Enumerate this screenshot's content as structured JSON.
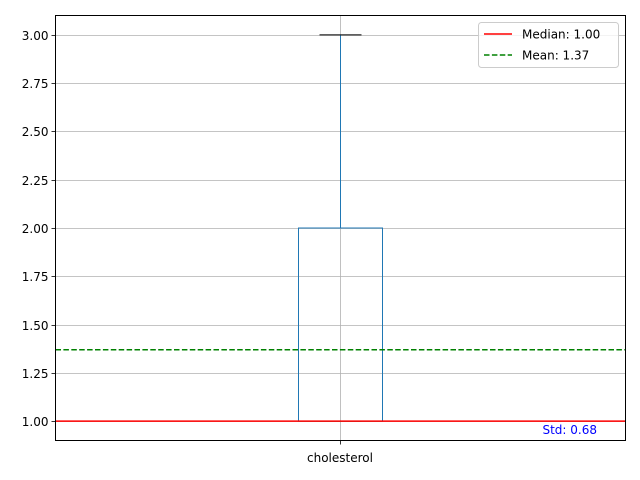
{
  "chart_data": {
    "type": "box",
    "category": "cholesterol",
    "ylim": [
      0.9,
      3.1
    ],
    "yticks": [
      1.0,
      1.25,
      1.5,
      1.75,
      2.0,
      2.25,
      2.5,
      2.75,
      3.0
    ],
    "ytick_labels": [
      "1.00",
      "1.25",
      "1.50",
      "1.75",
      "2.00",
      "2.25",
      "2.50",
      "2.75",
      "3.00"
    ],
    "grid": true,
    "box": {
      "whisker_low": 1.0,
      "q1": 1.0,
      "median": 1.0,
      "q3": 2.0,
      "whisker_high": 3.0
    },
    "lines": [
      {
        "label": "Median: 1.00",
        "value": 1.0,
        "style": "solid",
        "color": "#ff0000"
      },
      {
        "label": "Mean: 1.37",
        "value": 1.37,
        "style": "dashed",
        "color": "#008000"
      }
    ],
    "annotation": {
      "text": "Std: 0.68",
      "color": "#0000ff"
    },
    "legend_position": "top-right",
    "colors": {
      "box": "#1f77b4",
      "median_mark": "#2ca02c",
      "whisker_cap": "#000000",
      "grid": "#b0b0b0"
    }
  }
}
